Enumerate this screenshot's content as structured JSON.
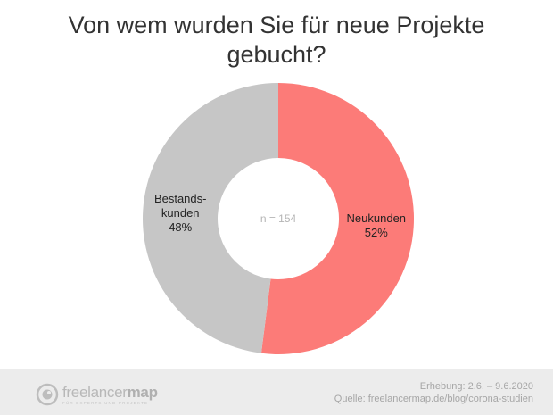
{
  "title": "Von wem wurden Sie für neue Projekte gebucht?",
  "chart_data": {
    "type": "pie",
    "donut": true,
    "center_label": "n = 154",
    "slices": [
      {
        "label_lines": [
          "Neukunden",
          "52%"
        ],
        "value": 52,
        "color": "#fc7b78"
      },
      {
        "label_lines": [
          "Bestands-",
          "kunden",
          "48%"
        ],
        "value": 48,
        "color": "#c6c6c6"
      }
    ]
  },
  "footer": {
    "logo_text_light": "freelancer",
    "logo_text_bold": "map",
    "logo_tagline": "FÜR EXPERTS UND PROJEKTE",
    "survey_period": "Erhebung: 2.6. – 9.6.2020",
    "source": "Quelle: freelancermap.de/blog/corona-studien"
  }
}
